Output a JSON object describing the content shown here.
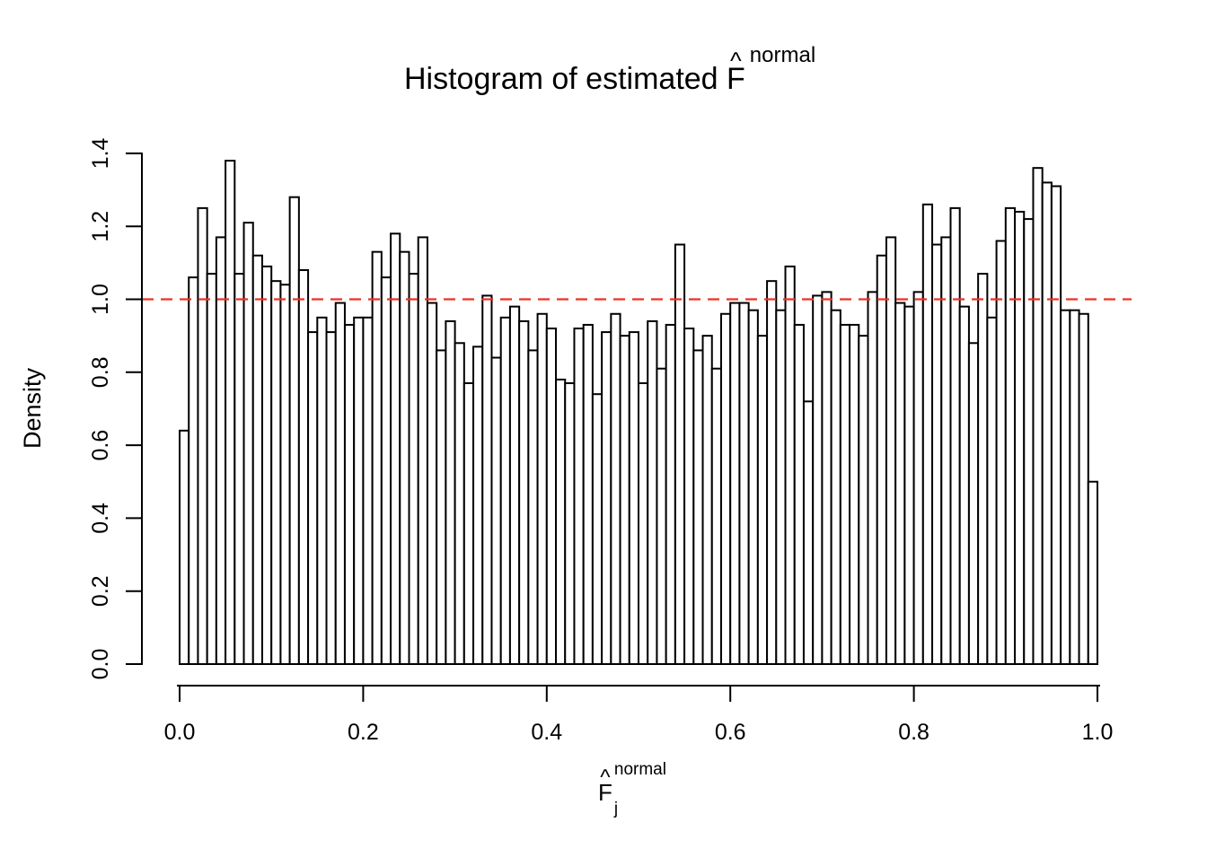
{
  "title": {
    "main": "Histogram of estimated F",
    "hat": "^",
    "superscript": "normal"
  },
  "y_axis": {
    "label": "Density",
    "tick_labels": [
      "0.0",
      "0.2",
      "0.4",
      "0.6",
      "0.8",
      "1.0",
      "1.2",
      "1.4"
    ]
  },
  "x_axis": {
    "label_base": "F",
    "label_hat": "^",
    "label_superscript": "normal",
    "label_subscript": "j",
    "tick_labels": [
      "0.0",
      "0.2",
      "0.4",
      "0.6",
      "0.8",
      "1.0"
    ]
  },
  "colors": {
    "background": "#ffffff",
    "bar_fill": "#ffffff",
    "bar_stroke": "#000000",
    "axis": "#000000",
    "reference_line": "#ee3124"
  },
  "chart_data": {
    "type": "bar",
    "subtype": "histogram",
    "title": "Histogram of estimated F-hat^normal",
    "xlabel": "F-hat_j^normal",
    "ylabel": "Density",
    "xlim": [
      0.0,
      1.0
    ],
    "ylim": [
      0.0,
      1.4
    ],
    "x_ticks": [
      0.0,
      0.2,
      0.4,
      0.6,
      0.8,
      1.0
    ],
    "y_ticks": [
      0.0,
      0.2,
      0.4,
      0.6,
      0.8,
      1.0,
      1.2,
      1.4
    ],
    "grid": false,
    "legend": "none",
    "bin_start": 0.0,
    "bin_width": 0.01,
    "ref_line_y": 1.0,
    "ref_line_style": "dashed",
    "densities": [
      0.64,
      1.06,
      1.25,
      1.07,
      1.17,
      1.38,
      1.07,
      1.21,
      1.12,
      1.09,
      1.05,
      1.04,
      1.28,
      1.08,
      0.91,
      0.95,
      0.91,
      0.99,
      0.93,
      0.95,
      0.95,
      1.13,
      1.06,
      1.18,
      1.13,
      1.07,
      1.17,
      0.99,
      0.86,
      0.94,
      0.88,
      0.77,
      0.87,
      1.01,
      0.84,
      0.95,
      0.98,
      0.94,
      0.86,
      0.96,
      0.92,
      0.78,
      0.77,
      0.92,
      0.93,
      0.74,
      0.91,
      0.96,
      0.9,
      0.91,
      0.77,
      0.94,
      0.81,
      0.93,
      1.15,
      0.92,
      0.86,
      0.9,
      0.81,
      0.96,
      0.99,
      0.99,
      0.97,
      0.9,
      1.05,
      0.97,
      1.09,
      0.93,
      0.72,
      1.01,
      1.02,
      0.97,
      0.93,
      0.93,
      0.9,
      1.02,
      1.12,
      1.17,
      0.99,
      0.98,
      1.02,
      1.26,
      1.15,
      1.17,
      1.25,
      0.98,
      0.88,
      1.07,
      0.95,
      1.16,
      1.25,
      1.24,
      1.22,
      1.36,
      1.32,
      1.31,
      0.97,
      0.97,
      0.96,
      0.5
    ]
  }
}
